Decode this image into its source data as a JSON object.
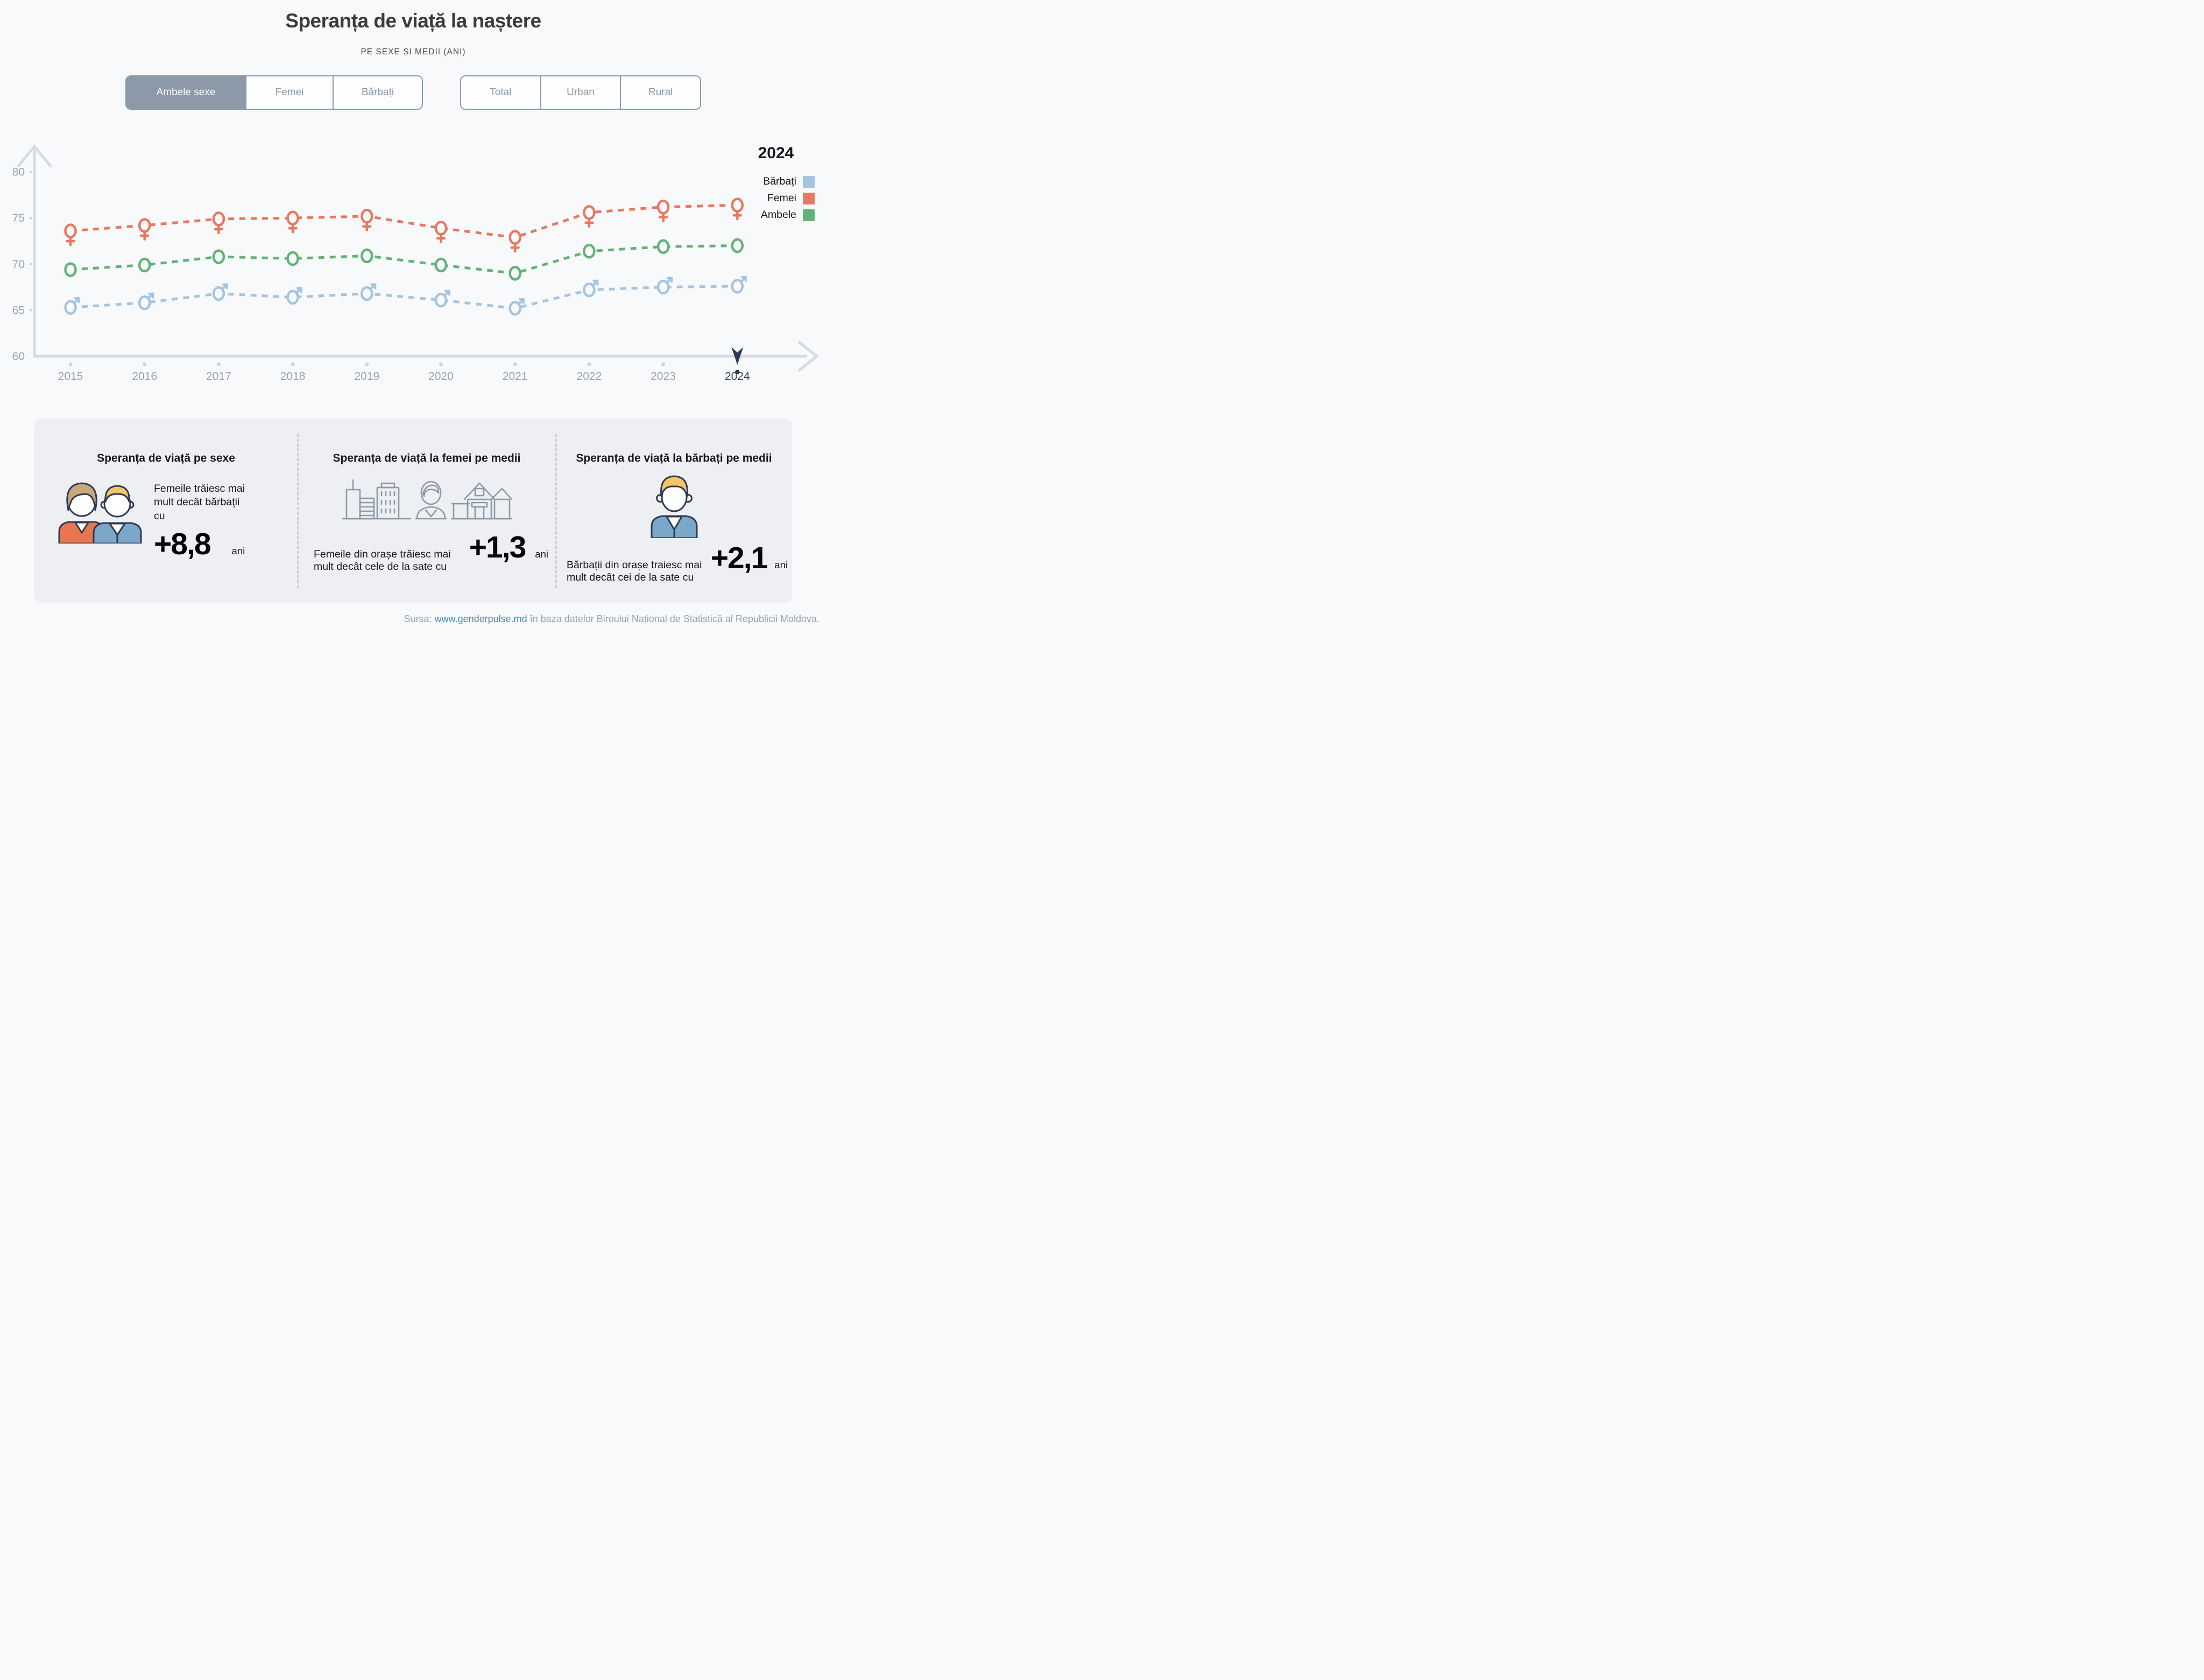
{
  "header": {
    "title": "Speranța de viață la naștere",
    "subtitle": "PE SEXE ȘI MEDII (ANI)"
  },
  "toggles": {
    "sex": {
      "items": [
        {
          "label": "Ambele sexe",
          "selected": true
        },
        {
          "label": "Femei",
          "selected": false
        },
        {
          "label": "Bărbați",
          "selected": false
        }
      ]
    },
    "mediu": {
      "items": [
        {
          "label": "Total",
          "selected": false
        },
        {
          "label": "Urban",
          "selected": false
        },
        {
          "label": "Rural",
          "selected": false
        }
      ]
    }
  },
  "chart_data": {
    "type": "line",
    "x": [
      2015,
      2016,
      2017,
      2018,
      2019,
      2020,
      2021,
      2022,
      2023,
      2024
    ],
    "series": [
      {
        "name": "Bărbați",
        "marker": "male",
        "color": "#a6c4e0",
        "values": [
          65.3,
          65.8,
          66.8,
          66.4,
          66.8,
          66.1,
          65.2,
          67.2,
          67.5,
          67.6
        ]
      },
      {
        "name": "Femei",
        "marker": "female",
        "color": "#e8785f",
        "values": [
          73.6,
          74.2,
          74.9,
          75.0,
          75.2,
          73.9,
          72.9,
          75.6,
          76.2,
          76.4
        ]
      },
      {
        "name": "Ambele",
        "marker": "circle",
        "color": "#63b377",
        "values": [
          69.4,
          69.9,
          70.8,
          70.6,
          70.9,
          69.9,
          69.0,
          71.4,
          71.9,
          72.0
        ]
      }
    ],
    "title": "Speranța de viață la naștere",
    "xlabel": "",
    "ylabel": "",
    "ylim": [
      60,
      82
    ],
    "yticks": [
      60,
      65,
      70,
      75,
      80
    ],
    "grid": false,
    "line_style": "dashed",
    "legend_title": "2024",
    "legend_position": "right",
    "selected_year": 2024,
    "axis_color": "#d5dbe2",
    "tick_label_color": "#9aa5b1",
    "year_label_color": "#98a2ad",
    "selected_year_color": "#2e3a55",
    "marker_fill": "#f8f9fa"
  },
  "panel": {
    "sections": [
      {
        "title": "Speranța de viață pe sexe",
        "text": "Femeile trăiesc mai mult decât bărbaţii cu",
        "value": "+8,8",
        "unit": "ani"
      },
      {
        "title": "Speranța de viață la femei pe medii",
        "text": "Femeile din orașe trăiesc mai mult decât cele de la sate cu",
        "value": "+1,3",
        "unit": "ani"
      },
      {
        "title": "Speranța de viață la bărbați pe medii",
        "text": "Bărbații din orașe traiesc mai mult decât cei de la sate cu",
        "value": "+2,1",
        "unit": "ani"
      }
    ]
  },
  "footer": {
    "prefix": "Sursa:",
    "link": "www.genderpulse.md",
    "suffix": "în baza datelor Biroului Național de Statistică al Republicii Moldova."
  }
}
